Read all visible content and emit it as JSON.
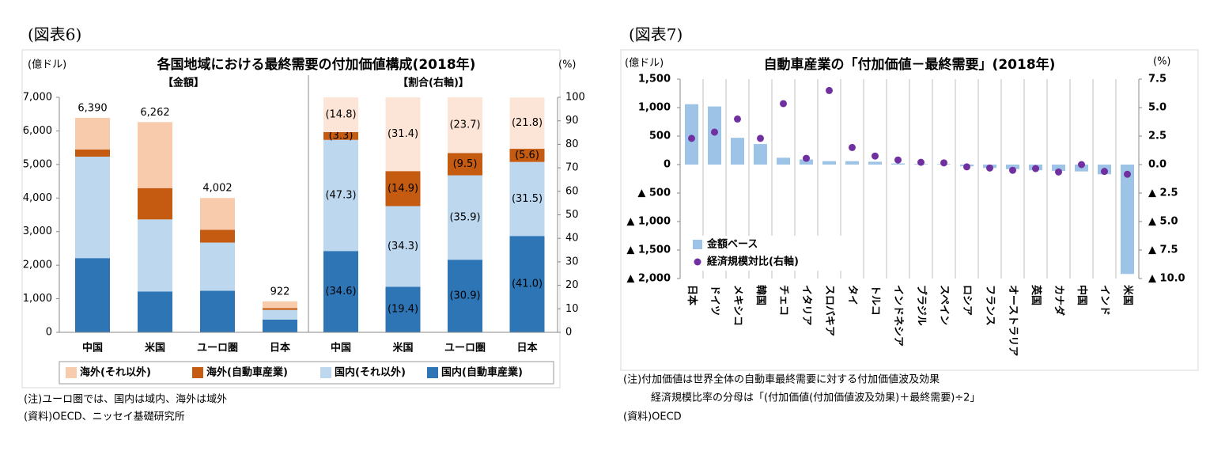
{
  "chart_data": [
    {
      "type": "stacked_bar",
      "figure_label": "(図表6)",
      "title": "各国地域における最終需要の付加価値構成(2018年)",
      "y_label": "(億ドル)",
      "y2_label": "(%)",
      "categories": [
        "中国",
        "米国",
        "ユーロ圏",
        "日本"
      ],
      "amount": {
        "label": "【金額】",
        "series": [
          {
            "name": "国内(自動車産業)",
            "color": "#2e75b6",
            "values": [
              2211,
              1215,
              1237,
              378
            ]
          },
          {
            "name": "国内(それ以外)",
            "color": "#bdd7ee",
            "values": [
              3022,
              2148,
              1437,
              290
            ]
          },
          {
            "name": "海外(自動車産業)",
            "color": "#c55a11",
            "values": [
              211,
              933,
              380,
              52
            ]
          },
          {
            "name": "海外(それ以外)",
            "color": "#f8cbad",
            "values": [
              946,
              1966,
              948,
              202
            ]
          }
        ],
        "totals": {
          "values": [
            6390,
            6262,
            4002,
            922
          ],
          "value_labels": [
            "6,390",
            "6,262",
            "4,002",
            "922"
          ]
        }
      },
      "share": {
        "label": "【割合(右軸)】",
        "colors": [
          "#2e75b6",
          "#bdd7ee",
          "#c55a11",
          "#fce4d6"
        ],
        "series": [
          {
            "values": [
              34.6,
              19.4,
              30.9,
              41.0
            ],
            "value_labels": [
              "(34.6)",
              "(19.4)",
              "(30.9)",
              "(41.0)"
            ]
          },
          {
            "values": [
              47.3,
              34.3,
              35.9,
              31.5
            ],
            "value_labels": [
              "(47.3)",
              "(34.3)",
              "(35.9)",
              "(31.5)"
            ]
          },
          {
            "values": [
              3.3,
              14.9,
              9.5,
              5.6
            ],
            "value_labels": [
              "(3.3)",
              "(14.9)",
              "(9.5)",
              "(5.6)"
            ]
          },
          {
            "values": [
              14.8,
              31.4,
              23.7,
              21.8
            ],
            "value_labels": [
              "(14.8)",
              "(31.4)",
              "(23.7)",
              "(21.8)"
            ]
          }
        ]
      },
      "ylim": [
        0,
        7000
      ],
      "yticks": [
        0,
        {
          "value": 1000,
          "label": "1,000"
        },
        {
          "value": 2000,
          "label": "2,000"
        },
        {
          "value": 3000,
          "label": "3,000"
        },
        {
          "value": 4000,
          "label": "4,000"
        },
        {
          "value": 5000,
          "label": "5,000"
        },
        {
          "value": 6000,
          "label": "6,000"
        },
        {
          "value": 7000,
          "label": "7,000"
        }
      ],
      "y2lim": [
        0,
        100
      ],
      "y2ticks": [
        0,
        10,
        20,
        30,
        40,
        50,
        60,
        70,
        80,
        90,
        100
      ],
      "legend": "bottom",
      "notes": [
        "(注)ユーロ圏では、国内は域内、海外は域外",
        "(資料)OECD、ニッセイ基礎研究所"
      ]
    },
    {
      "type": "bar_scatter",
      "figure_label": "(図表7)",
      "title": "自動車産業の「付加価値－最終需要」(2018年)",
      "y_label": "(億ドル)",
      "y2_label": "(%)",
      "categories": [
        "日本",
        "ドイツ",
        "メキシコ",
        "韓国",
        "チェコ",
        "イタリア",
        "スロバキア",
        "タイ",
        "トルコ",
        "インドネシア",
        "ブラジル",
        "スペイン",
        "ロシア",
        "フランス",
        "オーストラリア",
        "英国",
        "カナダ",
        "中国",
        "インド",
        "米国"
      ],
      "series": [
        {
          "name": "金額ベース",
          "type": "bar",
          "color": "#9dc3e6",
          "values": [
            1060,
            1020,
            470,
            360,
            120,
            90,
            60,
            60,
            50,
            20,
            10,
            10,
            -30,
            -60,
            -80,
            -100,
            -110,
            -120,
            -170,
            -1920
          ]
        },
        {
          "name": "経済規模対比(右軸)",
          "type": "scatter",
          "axis": "y2",
          "color": "#7030a0",
          "values": [
            2.3,
            2.85,
            4.0,
            2.3,
            5.35,
            0.55,
            6.5,
            1.5,
            0.75,
            0.4,
            0.2,
            0.15,
            -0.2,
            -0.3,
            -0.5,
            -0.35,
            -0.65,
            0.0,
            -0.6,
            -0.85
          ]
        }
      ],
      "ylim": [
        -2000,
        1500
      ],
      "yticks": [
        {
          "value": -2000,
          "label": "▲ 2,000"
        },
        {
          "value": -1500,
          "label": "▲ 1,500"
        },
        {
          "value": -1000,
          "label": "▲ 1,000"
        },
        {
          "value": -500,
          "label": "▲ 500"
        },
        0,
        500,
        {
          "value": 1000,
          "label": "1,000"
        },
        {
          "value": 1500,
          "label": "1,500"
        }
      ],
      "y2lim": [
        -10,
        7.5
      ],
      "y2ticks": [
        {
          "value": -10,
          "label": "▲ 10.0"
        },
        {
          "value": -7.5,
          "label": "▲ 7.5"
        },
        {
          "value": -5,
          "label": "▲ 5.0"
        },
        {
          "value": -2.5,
          "label": "▲ 2.5"
        },
        {
          "value": 0,
          "label": "0.0"
        },
        2.5,
        {
          "value": 5,
          "label": "5.0"
        },
        7.5
      ],
      "grid": "x",
      "legend": "lower left",
      "notes": [
        "(注)付加価値は世界全体の自動車最終需要に対する付加価値波及効果",
        "経済規模比率の分母は「(付加価値(付加価値波及効果)＋最終需要)÷2」",
        "(資料)OECD"
      ]
    }
  ]
}
